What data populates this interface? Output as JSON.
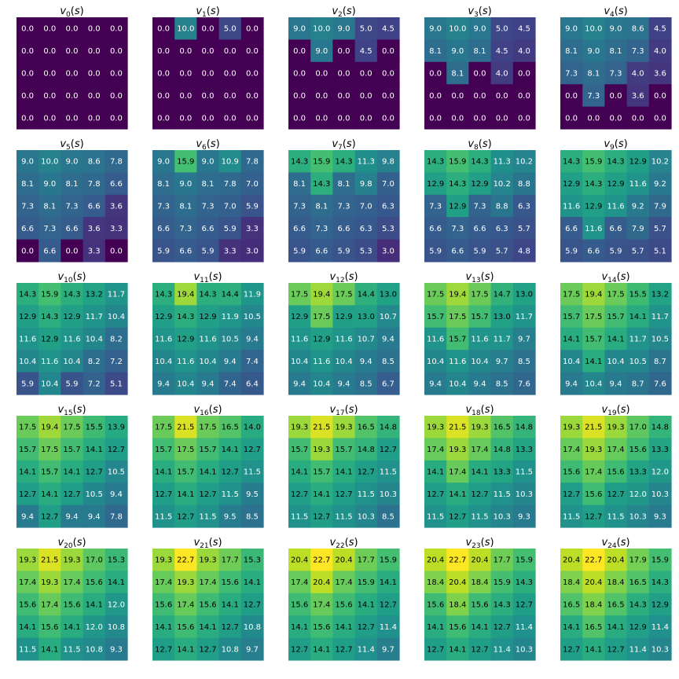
{
  "chart_data": {
    "type": "heatmap",
    "colormap": "viridis",
    "color_range": [
      0,
      22.7
    ],
    "grid_rows": 5,
    "grid_cols": 5,
    "panels": [
      {
        "title_base": "v",
        "title_sub": "0",
        "title_arg": "(s)",
        "values": [
          [
            0.0,
            0.0,
            0.0,
            0.0,
            0.0
          ],
          [
            0.0,
            0.0,
            0.0,
            0.0,
            0.0
          ],
          [
            0.0,
            0.0,
            0.0,
            0.0,
            0.0
          ],
          [
            0.0,
            0.0,
            0.0,
            0.0,
            0.0
          ],
          [
            0.0,
            0.0,
            0.0,
            0.0,
            0.0
          ]
        ]
      },
      {
        "title_base": "v",
        "title_sub": "1",
        "title_arg": "(s)",
        "values": [
          [
            0.0,
            10.0,
            0.0,
            5.0,
            0.0
          ],
          [
            0.0,
            0.0,
            0.0,
            0.0,
            0.0
          ],
          [
            0.0,
            0.0,
            0.0,
            0.0,
            0.0
          ],
          [
            0.0,
            0.0,
            0.0,
            0.0,
            0.0
          ],
          [
            0.0,
            0.0,
            0.0,
            0.0,
            0.0
          ]
        ]
      },
      {
        "title_base": "v",
        "title_sub": "2",
        "title_arg": "(s)",
        "values": [
          [
            9.0,
            10.0,
            9.0,
            5.0,
            4.5
          ],
          [
            0.0,
            9.0,
            0.0,
            4.5,
            0.0
          ],
          [
            0.0,
            0.0,
            0.0,
            0.0,
            0.0
          ],
          [
            0.0,
            0.0,
            0.0,
            0.0,
            0.0
          ],
          [
            0.0,
            0.0,
            0.0,
            0.0,
            0.0
          ]
        ]
      },
      {
        "title_base": "v",
        "title_sub": "3",
        "title_arg": "(s)",
        "values": [
          [
            9.0,
            10.0,
            9.0,
            5.0,
            4.5
          ],
          [
            8.1,
            9.0,
            8.1,
            4.5,
            4.0
          ],
          [
            0.0,
            8.1,
            0.0,
            4.0,
            0.0
          ],
          [
            0.0,
            0.0,
            0.0,
            0.0,
            0.0
          ],
          [
            0.0,
            0.0,
            0.0,
            0.0,
            0.0
          ]
        ]
      },
      {
        "title_base": "v",
        "title_sub": "4",
        "title_arg": "(s)",
        "values": [
          [
            9.0,
            10.0,
            9.0,
            8.6,
            4.5
          ],
          [
            8.1,
            9.0,
            8.1,
            7.3,
            4.0
          ],
          [
            7.3,
            8.1,
            7.3,
            4.0,
            3.6
          ],
          [
            0.0,
            7.3,
            0.0,
            3.6,
            0.0
          ],
          [
            0.0,
            0.0,
            0.0,
            0.0,
            0.0
          ]
        ]
      },
      {
        "title_base": "v",
        "title_sub": "5",
        "title_arg": "(s)",
        "values": [
          [
            9.0,
            10.0,
            9.0,
            8.6,
            7.8
          ],
          [
            8.1,
            9.0,
            8.1,
            7.8,
            6.6
          ],
          [
            7.3,
            8.1,
            7.3,
            6.6,
            3.6
          ],
          [
            6.6,
            7.3,
            6.6,
            3.6,
            3.3
          ],
          [
            0.0,
            6.6,
            0.0,
            3.3,
            0.0
          ]
        ]
      },
      {
        "title_base": "v",
        "title_sub": "6",
        "title_arg": "(s)",
        "values": [
          [
            9.0,
            15.9,
            9.0,
            10.9,
            7.8
          ],
          [
            8.1,
            9.0,
            8.1,
            7.8,
            7.0
          ],
          [
            7.3,
            8.1,
            7.3,
            7.0,
            5.9
          ],
          [
            6.6,
            7.3,
            6.6,
            5.9,
            3.3
          ],
          [
            5.9,
            6.6,
            5.9,
            3.3,
            3.0
          ]
        ]
      },
      {
        "title_base": "v",
        "title_sub": "7",
        "title_arg": "(s)",
        "values": [
          [
            14.3,
            15.9,
            14.3,
            11.3,
            9.8
          ],
          [
            8.1,
            14.3,
            8.1,
            9.8,
            7.0
          ],
          [
            7.3,
            8.1,
            7.3,
            7.0,
            6.3
          ],
          [
            6.6,
            7.3,
            6.6,
            6.3,
            5.3
          ],
          [
            5.9,
            6.6,
            5.9,
            5.3,
            3.0
          ]
        ]
      },
      {
        "title_base": "v",
        "title_sub": "8",
        "title_arg": "(s)",
        "values": [
          [
            14.3,
            15.9,
            14.3,
            11.3,
            10.2
          ],
          [
            12.9,
            14.3,
            12.9,
            10.2,
            8.8
          ],
          [
            7.3,
            12.9,
            7.3,
            8.8,
            6.3
          ],
          [
            6.6,
            7.3,
            6.6,
            6.3,
            5.7
          ],
          [
            5.9,
            6.6,
            5.9,
            5.7,
            4.8
          ]
        ]
      },
      {
        "title_base": "v",
        "title_sub": "9",
        "title_arg": "(s)",
        "values": [
          [
            14.3,
            15.9,
            14.3,
            12.9,
            10.2
          ],
          [
            12.9,
            14.3,
            12.9,
            11.6,
            9.2
          ],
          [
            11.6,
            12.9,
            11.6,
            9.2,
            7.9
          ],
          [
            6.6,
            11.6,
            6.6,
            7.9,
            5.7
          ],
          [
            5.9,
            6.6,
            5.9,
            5.7,
            5.1
          ]
        ]
      },
      {
        "title_base": "v",
        "title_sub": "10",
        "title_arg": "(s)",
        "values": [
          [
            14.3,
            15.9,
            14.3,
            13.2,
            11.7
          ],
          [
            12.9,
            14.3,
            12.9,
            11.7,
            10.4
          ],
          [
            11.6,
            12.9,
            11.6,
            10.4,
            8.2
          ],
          [
            10.4,
            11.6,
            10.4,
            8.2,
            7.2
          ],
          [
            5.9,
            10.4,
            5.9,
            7.2,
            5.1
          ]
        ]
      },
      {
        "title_base": "v",
        "title_sub": "11",
        "title_arg": "(s)",
        "values": [
          [
            14.3,
            19.4,
            14.3,
            14.4,
            11.9
          ],
          [
            12.9,
            14.3,
            12.9,
            11.9,
            10.5
          ],
          [
            11.6,
            12.9,
            11.6,
            10.5,
            9.4
          ],
          [
            10.4,
            11.6,
            10.4,
            9.4,
            7.4
          ],
          [
            9.4,
            10.4,
            9.4,
            7.4,
            6.4
          ]
        ]
      },
      {
        "title_base": "v",
        "title_sub": "12",
        "title_arg": "(s)",
        "values": [
          [
            17.5,
            19.4,
            17.5,
            14.4,
            13.0
          ],
          [
            12.9,
            17.5,
            12.9,
            13.0,
            10.7
          ],
          [
            11.6,
            12.9,
            11.6,
            10.7,
            9.4
          ],
          [
            10.4,
            11.6,
            10.4,
            9.4,
            8.5
          ],
          [
            9.4,
            10.4,
            9.4,
            8.5,
            6.7
          ]
        ]
      },
      {
        "title_base": "v",
        "title_sub": "13",
        "title_arg": "(s)",
        "values": [
          [
            17.5,
            19.4,
            17.5,
            14.7,
            13.0
          ],
          [
            15.7,
            17.5,
            15.7,
            13.0,
            11.7
          ],
          [
            11.6,
            15.7,
            11.6,
            11.7,
            9.7
          ],
          [
            10.4,
            11.6,
            10.4,
            9.7,
            8.5
          ],
          [
            9.4,
            10.4,
            9.4,
            8.5,
            7.6
          ]
        ]
      },
      {
        "title_base": "v",
        "title_sub": "14",
        "title_arg": "(s)",
        "values": [
          [
            17.5,
            19.4,
            17.5,
            15.5,
            13.2
          ],
          [
            15.7,
            17.5,
            15.7,
            14.1,
            11.7
          ],
          [
            14.1,
            15.7,
            14.1,
            11.7,
            10.5
          ],
          [
            10.4,
            14.1,
            10.4,
            10.5,
            8.7
          ],
          [
            9.4,
            10.4,
            9.4,
            8.7,
            7.6
          ]
        ]
      },
      {
        "title_base": "v",
        "title_sub": "15",
        "title_arg": "(s)",
        "values": [
          [
            17.5,
            19.4,
            17.5,
            15.5,
            13.9
          ],
          [
            15.7,
            17.5,
            15.7,
            14.1,
            12.7
          ],
          [
            14.1,
            15.7,
            14.1,
            12.7,
            10.5
          ],
          [
            12.7,
            14.1,
            12.7,
            10.5,
            9.4
          ],
          [
            9.4,
            12.7,
            9.4,
            9.4,
            7.8
          ]
        ]
      },
      {
        "title_base": "v",
        "title_sub": "16",
        "title_arg": "(s)",
        "values": [
          [
            17.5,
            21.5,
            17.5,
            16.5,
            14.0
          ],
          [
            15.7,
            17.5,
            15.7,
            14.1,
            12.7
          ],
          [
            14.1,
            15.7,
            14.1,
            12.7,
            11.5
          ],
          [
            12.7,
            14.1,
            12.7,
            11.5,
            9.5
          ],
          [
            11.5,
            12.7,
            11.5,
            9.5,
            8.5
          ]
        ]
      },
      {
        "title_base": "v",
        "title_sub": "17",
        "title_arg": "(s)",
        "values": [
          [
            19.3,
            21.5,
            19.3,
            16.5,
            14.8
          ],
          [
            15.7,
            19.3,
            15.7,
            14.8,
            12.7
          ],
          [
            14.1,
            15.7,
            14.1,
            12.7,
            11.5
          ],
          [
            12.7,
            14.1,
            12.7,
            11.5,
            10.3
          ],
          [
            11.5,
            12.7,
            11.5,
            10.3,
            8.5
          ]
        ]
      },
      {
        "title_base": "v",
        "title_sub": "18",
        "title_arg": "(s)",
        "values": [
          [
            19.3,
            21.5,
            19.3,
            16.5,
            14.8
          ],
          [
            17.4,
            19.3,
            17.4,
            14.8,
            13.3
          ],
          [
            14.1,
            17.4,
            14.1,
            13.3,
            11.5
          ],
          [
            12.7,
            14.1,
            12.7,
            11.5,
            10.3
          ],
          [
            11.5,
            12.7,
            11.5,
            10.3,
            9.3
          ]
        ]
      },
      {
        "title_base": "v",
        "title_sub": "19",
        "title_arg": "(s)",
        "values": [
          [
            19.3,
            21.5,
            19.3,
            17.0,
            14.8
          ],
          [
            17.4,
            19.3,
            17.4,
            15.6,
            13.3
          ],
          [
            15.6,
            17.4,
            15.6,
            13.3,
            12.0
          ],
          [
            12.7,
            15.6,
            12.7,
            12.0,
            10.3
          ],
          [
            11.5,
            12.7,
            11.5,
            10.3,
            9.3
          ]
        ]
      },
      {
        "title_base": "v",
        "title_sub": "20",
        "title_arg": "(s)",
        "values": [
          [
            19.3,
            21.5,
            19.3,
            17.0,
            15.3
          ],
          [
            17.4,
            19.3,
            17.4,
            15.6,
            14.1
          ],
          [
            15.6,
            17.4,
            15.6,
            14.1,
            12.0
          ],
          [
            14.1,
            15.6,
            14.1,
            12.0,
            10.8
          ],
          [
            11.5,
            14.1,
            11.5,
            10.8,
            9.3
          ]
        ]
      },
      {
        "title_base": "v",
        "title_sub": "21",
        "title_arg": "(s)",
        "values": [
          [
            19.3,
            22.7,
            19.3,
            17.7,
            15.3
          ],
          [
            17.4,
            19.3,
            17.4,
            15.6,
            14.1
          ],
          [
            15.6,
            17.4,
            15.6,
            14.1,
            12.7
          ],
          [
            14.1,
            15.6,
            14.1,
            12.7,
            10.8
          ],
          [
            12.7,
            14.1,
            12.7,
            10.8,
            9.7
          ]
        ]
      },
      {
        "title_base": "v",
        "title_sub": "22",
        "title_arg": "(s)",
        "values": [
          [
            20.4,
            22.7,
            20.4,
            17.7,
            15.9
          ],
          [
            17.4,
            20.4,
            17.4,
            15.9,
            14.1
          ],
          [
            15.6,
            17.4,
            15.6,
            14.1,
            12.7
          ],
          [
            14.1,
            15.6,
            14.1,
            12.7,
            11.4
          ],
          [
            12.7,
            14.1,
            12.7,
            11.4,
            9.7
          ]
        ]
      },
      {
        "title_base": "v",
        "title_sub": "23",
        "title_arg": "(s)",
        "values": [
          [
            20.4,
            22.7,
            20.4,
            17.7,
            15.9
          ],
          [
            18.4,
            20.4,
            18.4,
            15.9,
            14.3
          ],
          [
            15.6,
            18.4,
            15.6,
            14.3,
            12.7
          ],
          [
            14.1,
            15.6,
            14.1,
            12.7,
            11.4
          ],
          [
            12.7,
            14.1,
            12.7,
            11.4,
            10.3
          ]
        ]
      },
      {
        "title_base": "v",
        "title_sub": "24",
        "title_arg": "(s)",
        "values": [
          [
            20.4,
            22.7,
            20.4,
            17.9,
            15.9
          ],
          [
            18.4,
            20.4,
            18.4,
            16.5,
            14.3
          ],
          [
            16.5,
            18.4,
            16.5,
            14.3,
            12.9
          ],
          [
            14.1,
            16.5,
            14.1,
            12.9,
            11.4
          ],
          [
            12.7,
            14.1,
            12.7,
            11.4,
            10.3
          ]
        ]
      }
    ]
  }
}
